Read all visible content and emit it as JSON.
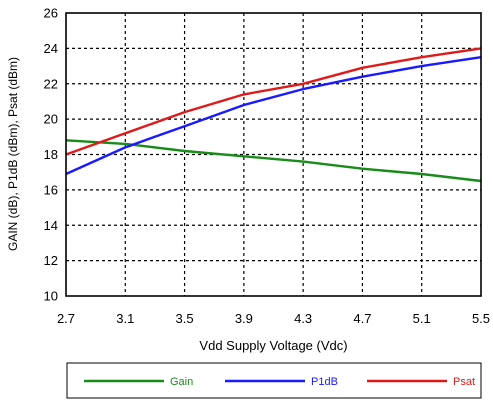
{
  "chart_data": {
    "type": "line",
    "xlabel": "Vdd Supply Voltage (Vdc)",
    "ylabel": "GAIN (dB), P1dB (dBm), Psat (dBm)",
    "xlim": [
      2.7,
      5.5
    ],
    "ylim": [
      10,
      26
    ],
    "xticks": [
      "2.7",
      "3.1",
      "3.5",
      "3.9",
      "4.3",
      "4.7",
      "5.1",
      "5.5"
    ],
    "yticks": [
      "10",
      "12",
      "14",
      "16",
      "18",
      "20",
      "22",
      "24",
      "26"
    ],
    "grid": true,
    "legend_position": "bottom",
    "series": [
      {
        "name": "Gain",
        "color": "#1a8c1a",
        "x": [
          2.7,
          3.1,
          3.5,
          3.9,
          4.3,
          4.7,
          5.1,
          5.5
        ],
        "y": [
          18.8,
          18.6,
          18.2,
          17.9,
          17.6,
          17.2,
          16.9,
          16.5
        ]
      },
      {
        "name": "P1dB",
        "color": "#1a1aff",
        "x": [
          2.7,
          3.1,
          3.3,
          3.5,
          3.9,
          4.3,
          4.7,
          5.1,
          5.5
        ],
        "y": [
          16.9,
          18.4,
          19.0,
          19.6,
          20.8,
          21.7,
          22.4,
          23.0,
          23.5
        ]
      },
      {
        "name": "Psat",
        "color": "#e01a1a",
        "x": [
          2.7,
          3.1,
          3.3,
          3.5,
          3.9,
          4.3,
          4.7,
          5.1,
          5.5
        ],
        "y": [
          18.0,
          19.2,
          19.8,
          20.4,
          21.4,
          22.0,
          22.9,
          23.5,
          24.0
        ]
      }
    ]
  }
}
